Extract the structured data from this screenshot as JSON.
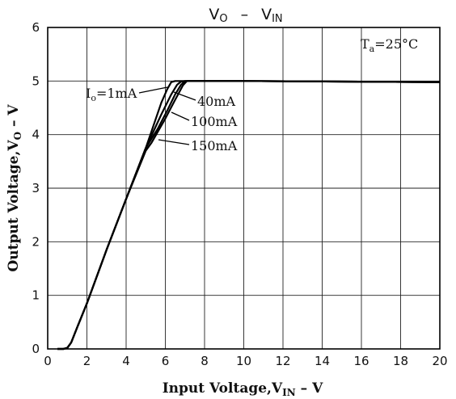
{
  "chart_data": {
    "type": "line",
    "title": "Vo  –  VIN",
    "title_parts": {
      "v": "V",
      "o_sub": "O",
      "dash": "–",
      "vin_v": "V",
      "vin_sub": "IN"
    },
    "xlabel": "Input Voltage, VIN – V",
    "xlabel_parts": {
      "main": "Input Voltage,V",
      "sub": "IN",
      "tail": " – V"
    },
    "ylabel": "Output Voltage, VO – V",
    "ylabel_parts": {
      "main": "Output Voltage,V",
      "sub": "O",
      "tail": " – V"
    },
    "xlim": [
      0,
      20
    ],
    "ylim": [
      0,
      6
    ],
    "x_ticks": [
      0,
      2,
      4,
      6,
      8,
      10,
      12,
      14,
      16,
      18,
      20
    ],
    "y_ticks": [
      0,
      1,
      2,
      3,
      4,
      5,
      6
    ],
    "grid": true,
    "condition": "Ta = 25°C",
    "condition_parts": {
      "t": "T",
      "sub": "a",
      "tail": "=25°C"
    },
    "series": [
      {
        "name": "Io = 1mA",
        "label_parts": {
          "i": "I",
          "sub": "o",
          "tail": "=1mA"
        },
        "x": [
          0.5,
          0.8,
          1.0,
          1.2,
          1.5,
          2,
          3,
          4,
          5,
          5.8,
          6.1,
          6.3,
          6.5,
          7,
          10,
          15,
          20
        ],
        "y": [
          0,
          0,
          0.02,
          0.12,
          0.4,
          0.85,
          1.85,
          2.8,
          3.75,
          4.6,
          4.85,
          4.98,
          5.0,
          5.0,
          5.0,
          4.99,
          4.98
        ]
      },
      {
        "name": "40mA",
        "x": [
          0.5,
          0.8,
          1.0,
          1.2,
          1.5,
          2,
          3,
          4,
          5,
          5.8,
          6.3,
          6.6,
          6.8,
          7,
          10,
          15,
          20
        ],
        "y": [
          0,
          0,
          0.02,
          0.12,
          0.4,
          0.85,
          1.85,
          2.8,
          3.75,
          4.38,
          4.75,
          4.93,
          4.99,
          5.0,
          5.0,
          4.99,
          4.98
        ]
      },
      {
        "name": "100mA",
        "x": [
          0.5,
          0.8,
          1.0,
          1.2,
          1.5,
          2,
          3,
          4,
          5,
          5.6,
          6.1,
          6.5,
          6.8,
          7,
          10,
          15,
          20
        ],
        "y": [
          0,
          0,
          0.02,
          0.12,
          0.4,
          0.85,
          1.85,
          2.8,
          3.75,
          4.1,
          4.45,
          4.75,
          4.93,
          5.0,
          5.0,
          4.99,
          4.98
        ]
      },
      {
        "name": "150mA",
        "x": [
          0.5,
          0.8,
          1.0,
          1.2,
          1.5,
          2,
          3,
          4,
          5,
          5.3,
          6.0,
          6.5,
          6.9,
          7.1,
          10,
          15,
          20
        ],
        "y": [
          0,
          0,
          0.02,
          0.12,
          0.4,
          0.85,
          1.85,
          2.8,
          3.7,
          3.85,
          4.3,
          4.65,
          4.92,
          5.0,
          5.0,
          4.99,
          4.98
        ]
      }
    ]
  }
}
